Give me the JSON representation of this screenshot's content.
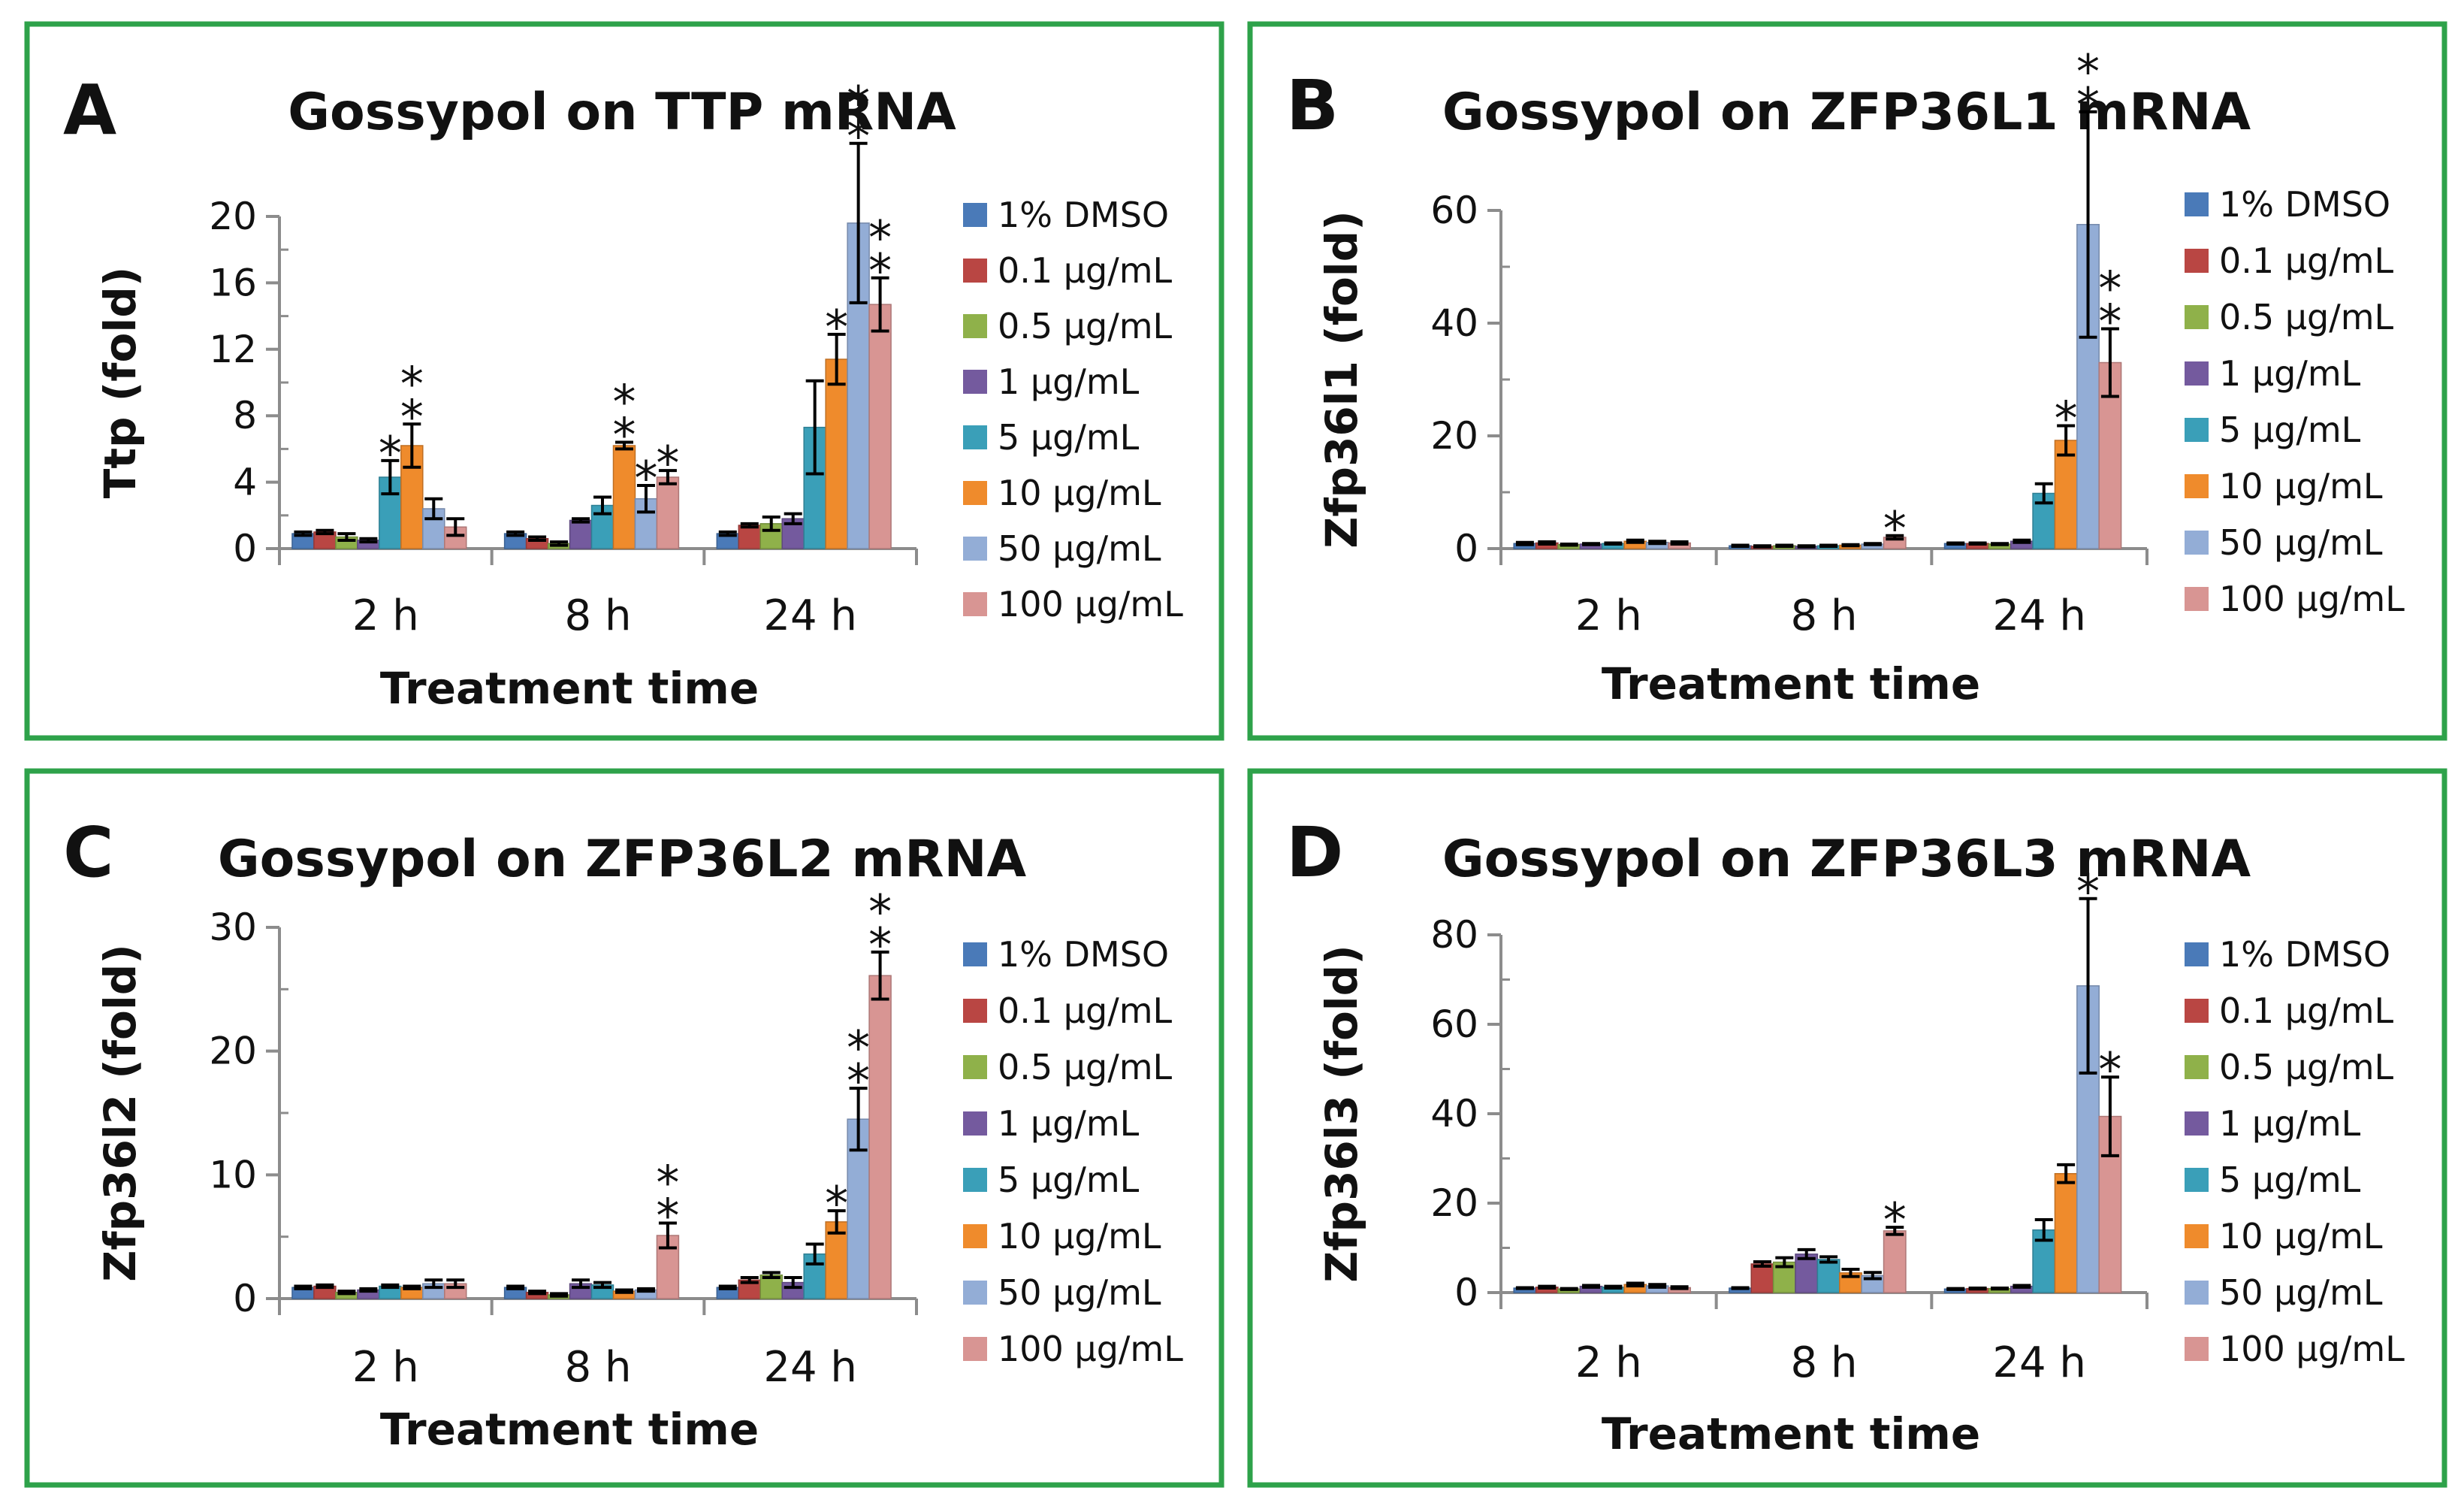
{
  "colors": {
    "border": "#2ea24a",
    "axis": "#8c8c8c",
    "series": [
      "#4a7ab8",
      "#b94643",
      "#8fb14a",
      "#745a9e",
      "#3a9fb8",
      "#ef8b2c",
      "#93add6",
      "#d89593"
    ]
  },
  "chart_data": [
    {
      "letter": "A",
      "type": "bar",
      "title": "Gossypol on TTP mRNA",
      "ylabel": "Ttp (fold)",
      "xlabel": "Treatment time",
      "categories": [
        "2 h",
        "8 h",
        "24 h"
      ],
      "ylim": [
        0,
        20
      ],
      "yticks": [
        "0",
        "4",
        "8",
        "12",
        "16",
        "20"
      ],
      "series": [
        {
          "name": "1% DMSO",
          "values": [
            0.9,
            0.9,
            0.9
          ],
          "errors": [
            0.1,
            0.1,
            0.1
          ]
        },
        {
          "name": "0.1 μg/mL",
          "values": [
            1.0,
            0.6,
            1.4
          ],
          "errors": [
            0.1,
            0.1,
            0.1
          ]
        },
        {
          "name": "0.5 μg/mL",
          "values": [
            0.7,
            0.3,
            1.5
          ],
          "errors": [
            0.2,
            0.1,
            0.4
          ]
        },
        {
          "name": "1 μg/mL",
          "values": [
            0.5,
            1.7,
            1.8
          ],
          "errors": [
            0.1,
            0.1,
            0.3
          ]
        },
        {
          "name": "5 μg/mL",
          "values": [
            4.3,
            2.6,
            7.3
          ],
          "errors": [
            1.0,
            0.5,
            2.8
          ]
        },
        {
          "name": "10 μg/mL",
          "values": [
            6.2,
            6.2,
            11.4
          ],
          "errors": [
            1.3,
            0.2,
            1.5
          ]
        },
        {
          "name": "50 μg/mL",
          "values": [
            2.4,
            3.0,
            19.6
          ],
          "errors": [
            0.6,
            0.8,
            4.8
          ]
        },
        {
          "name": "100 μg/mL",
          "values": [
            1.3,
            4.3,
            14.7
          ],
          "errors": [
            0.5,
            0.4,
            1.6
          ]
        }
      ],
      "significance": [
        {
          "group": 0,
          "series": 4,
          "label": "*"
        },
        {
          "group": 0,
          "series": 5,
          "label": "**"
        },
        {
          "group": 1,
          "series": 5,
          "label": "**"
        },
        {
          "group": 1,
          "series": 6,
          "label": "*"
        },
        {
          "group": 1,
          "series": 7,
          "label": "*"
        },
        {
          "group": 2,
          "series": 5,
          "label": "*"
        },
        {
          "group": 2,
          "series": 6,
          "label": "**"
        },
        {
          "group": 2,
          "series": 7,
          "label": "**"
        }
      ]
    },
    {
      "letter": "B",
      "type": "bar",
      "title": "Gossypol on ZFP36L1 mRNA",
      "ylabel": "Zfp36l1 (fold)",
      "xlabel": "Treatment time",
      "categories": [
        "2 h",
        "8 h",
        "24 h"
      ],
      "ylim": [
        0,
        60
      ],
      "yticks": [
        "0",
        "20",
        "40",
        "60"
      ],
      "series": [
        {
          "name": "1% DMSO",
          "values": [
            0.9,
            0.5,
            0.9
          ],
          "errors": [
            0.2,
            0.1,
            0.1
          ]
        },
        {
          "name": "0.1 μg/mL",
          "values": [
            1.0,
            0.4,
            0.9
          ],
          "errors": [
            0.2,
            0.1,
            0.1
          ]
        },
        {
          "name": "0.5 μg/mL",
          "values": [
            0.7,
            0.5,
            0.8
          ],
          "errors": [
            0.1,
            0.1,
            0.1
          ]
        },
        {
          "name": "1 μg/mL",
          "values": [
            0.8,
            0.4,
            1.3
          ],
          "errors": [
            0.1,
            0.1,
            0.2
          ]
        },
        {
          "name": "5 μg/mL",
          "values": [
            0.9,
            0.5,
            9.8
          ],
          "errors": [
            0.1,
            0.1,
            1.7
          ]
        },
        {
          "name": "10 μg/mL",
          "values": [
            1.3,
            0.6,
            19.2
          ],
          "errors": [
            0.2,
            0.1,
            2.6
          ]
        },
        {
          "name": "50 μg/mL",
          "values": [
            1.1,
            0.8,
            57.5
          ],
          "errors": [
            0.2,
            0.1,
            20.0
          ]
        },
        {
          "name": "100 μg/mL",
          "values": [
            1.0,
            2.0,
            33.0
          ],
          "errors": [
            0.2,
            0.3,
            6.0
          ]
        }
      ],
      "significance": [
        {
          "group": 1,
          "series": 7,
          "label": "*"
        },
        {
          "group": 2,
          "series": 5,
          "label": "*"
        },
        {
          "group": 2,
          "series": 6,
          "label": "**"
        },
        {
          "group": 2,
          "series": 7,
          "label": "**"
        }
      ]
    },
    {
      "letter": "C",
      "type": "bar",
      "title": "Gossypol on ZFP36L2 mRNA",
      "ylabel": "Zfp36l2 (fold)",
      "xlabel": "Treatment time",
      "categories": [
        "2 h",
        "8 h",
        "24 h"
      ],
      "ylim": [
        0,
        30
      ],
      "yticks": [
        "0",
        "10",
        "20",
        "30"
      ],
      "series": [
        {
          "name": "1% DMSO",
          "values": [
            0.9,
            0.9,
            0.9
          ],
          "errors": [
            0.1,
            0.1,
            0.1
          ]
        },
        {
          "name": "0.1 μg/mL",
          "values": [
            1.0,
            0.5,
            1.5
          ],
          "errors": [
            0.1,
            0.1,
            0.2
          ]
        },
        {
          "name": "0.5 μg/mL",
          "values": [
            0.5,
            0.3,
            1.9
          ],
          "errors": [
            0.1,
            0.1,
            0.2
          ]
        },
        {
          "name": "1 μg/mL",
          "values": [
            0.7,
            1.2,
            1.3
          ],
          "errors": [
            0.1,
            0.3,
            0.4
          ]
        },
        {
          "name": "5 μg/mL",
          "values": [
            1.0,
            1.1,
            3.6
          ],
          "errors": [
            0.1,
            0.2,
            0.8
          ]
        },
        {
          "name": "10 μg/mL",
          "values": [
            0.9,
            0.6,
            6.2
          ],
          "errors": [
            0.1,
            0.1,
            0.9
          ]
        },
        {
          "name": "50 μg/mL",
          "values": [
            1.2,
            0.7,
            14.5
          ],
          "errors": [
            0.3,
            0.1,
            2.5
          ]
        },
        {
          "name": "100 μg/mL",
          "values": [
            1.2,
            5.1,
            26.1
          ],
          "errors": [
            0.3,
            1.0,
            1.9
          ]
        }
      ],
      "significance": [
        {
          "group": 1,
          "series": 7,
          "label": "**"
        },
        {
          "group": 2,
          "series": 5,
          "label": "*"
        },
        {
          "group": 2,
          "series": 6,
          "label": "**"
        },
        {
          "group": 2,
          "series": 7,
          "label": "**"
        }
      ]
    },
    {
      "letter": "D",
      "type": "bar",
      "title": "Gossypol on ZFP36L3 mRNA",
      "ylabel": "Zfp36l3 (fold)",
      "xlabel": "Treatment time",
      "categories": [
        "2 h",
        "8 h",
        "24 h"
      ],
      "ylim": [
        0,
        80
      ],
      "yticks": [
        "0",
        "20",
        "40",
        "60",
        "80"
      ],
      "series": [
        {
          "name": "1% DMSO",
          "values": [
            1.0,
            1.0,
            0.8
          ],
          "errors": [
            0.1,
            0.1,
            0.1
          ]
        },
        {
          "name": "0.1 μg/mL",
          "values": [
            1.2,
            6.4,
            0.9
          ],
          "errors": [
            0.2,
            0.5,
            0.1
          ]
        },
        {
          "name": "0.5 μg/mL",
          "values": [
            0.8,
            6.8,
            0.9
          ],
          "errors": [
            0.1,
            1.0,
            0.1
          ]
        },
        {
          "name": "1 μg/mL",
          "values": [
            1.4,
            8.6,
            1.4
          ],
          "errors": [
            0.2,
            1.0,
            0.2
          ]
        },
        {
          "name": "5 μg/mL",
          "values": [
            1.2,
            7.4,
            14.0
          ],
          "errors": [
            0.2,
            0.6,
            2.3
          ]
        },
        {
          "name": "10 μg/mL",
          "values": [
            1.8,
            4.4,
            26.6
          ],
          "errors": [
            0.3,
            0.8,
            2.0
          ]
        },
        {
          "name": "50 μg/mL",
          "values": [
            1.5,
            3.8,
            68.6
          ],
          "errors": [
            0.3,
            0.7,
            19.5
          ]
        },
        {
          "name": "100 μg/mL",
          "values": [
            1.1,
            13.8,
            39.4
          ],
          "errors": [
            0.2,
            0.8,
            8.8
          ]
        }
      ],
      "significance": [
        {
          "group": 1,
          "series": 7,
          "label": "*"
        },
        {
          "group": 2,
          "series": 6,
          "label": "*"
        },
        {
          "group": 2,
          "series": 7,
          "label": "*"
        }
      ]
    }
  ]
}
